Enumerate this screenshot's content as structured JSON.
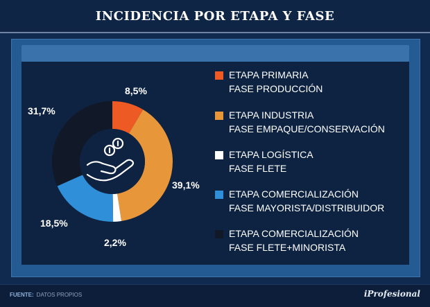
{
  "header": {
    "title": "INCIDENCIA POR ETAPA Y FASE"
  },
  "footer": {
    "source_label": "FUENTE:",
    "source_value": "DATOS PROPIOS",
    "brand": "iProfesional"
  },
  "chart_data": {
    "type": "pie",
    "style": "donut",
    "categories": [
      "ETAPA PRIMARIA / FASE PRODUCCIÓN",
      "ETAPA INDUSTRIA / FASE EMPAQUE/CONSERVACIÓN",
      "ETAPA LOGÍSTICA / FASE FLETE",
      "ETAPA COMERCIALIZACIÓN / FASE MAYORISTA/DISTRIBUIDOR",
      "ETAPA COMERCIALIZACIÓN / FASE FLETE+MINORISTA"
    ],
    "values": [
      8.5,
      39.1,
      2.2,
      18.5,
      31.7
    ],
    "value_labels": [
      "8,5%",
      "39,1%",
      "2,2%",
      "18,5%",
      "31,7%"
    ],
    "colors": [
      "#ee5a24",
      "#e8963a",
      "#ffffff",
      "#2f8fd8",
      "#111827"
    ],
    "center_icon": "hand-coins-icon",
    "legend_placement": "right",
    "legend": [
      {
        "line1": "ETAPA PRIMARIA",
        "line2": "FASE PRODUCCIÓN",
        "color": "#ee5a24"
      },
      {
        "line1": "ETAPA INDUSTRIA",
        "line2": "FASE EMPAQUE/CONSERVACIÓN",
        "color": "#e8963a"
      },
      {
        "line1": "ETAPA  LOGÍSTICA",
        "line2": "FASE FLETE",
        "color": "#ffffff"
      },
      {
        "line1": "ETAPA COMERCIALIZACIÓN",
        "line2": "FASE MAYORISTA/DISTRIBUIDOR",
        "color": "#2f8fd8"
      },
      {
        "line1": "ETAPA COMERCIALIZACIÓN",
        "line2": "FASE FLETE+MINORISTA",
        "color": "#111827"
      }
    ]
  }
}
